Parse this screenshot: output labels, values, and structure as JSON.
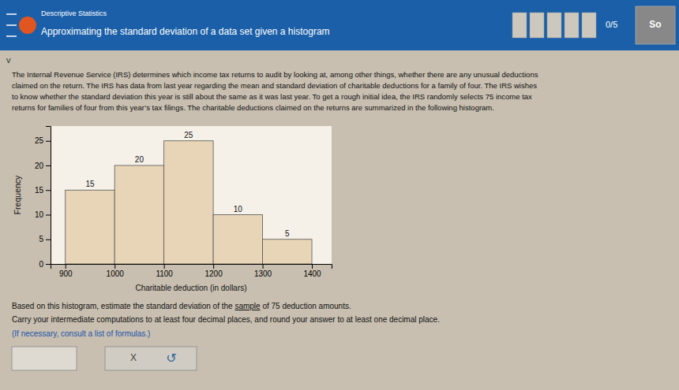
{
  "chart_data": {
    "type": "histogram",
    "bins": [
      900,
      1000,
      1100,
      1200,
      1300,
      1400
    ],
    "values": [
      15,
      20,
      25,
      10,
      5
    ],
    "color": "#e8d5b8",
    "xlim": [
      870,
      1440
    ],
    "xticks": [
      900,
      1000,
      1100,
      1200,
      1300,
      1400
    ],
    "ylim": [
      0,
      28
    ],
    "yticks": [
      0,
      5,
      10,
      15,
      20,
      25
    ],
    "xlabel": "Charitable deduction (in dollars)",
    "ylabel": "Frequency",
    "data_labels": true
  },
  "page": {
    "title": "Approximating the standard deviation of a data set given a histogram",
    "subtitle": "Descriptive Statistics",
    "title_bar_color": "#1a5fa8",
    "title_text_color": "#ffffff",
    "background": "#c8bfb0",
    "plot_background": "#f5f0e8",
    "link_color": "#2255aa",
    "menu_chevron": "v",
    "paragraph": [
      "The Internal Revenue Service (IRS) determines which income tax returns to audit by looking at, among other things, whether there are any unusual deductions",
      "claimed on the return. The IRS has data from last year regarding the mean and standard deviation of charitable deductions for a family of four. The IRS wishes",
      "to know whether the standard deviation this year is still about the same as it was last year. To get a rough initial idea, the IRS randomly selects 75 income tax",
      "returns for families of four from this year’s tax filings. The charitable deductions claimed on the returns are summarized in the following histogram."
    ],
    "question_parts": [
      "Based on this histogram, estimate the standard deviation of the ",
      "sample",
      " of 75 deduction amounts."
    ],
    "instruction": "Carry your intermediate computations to at least four decimal places, and round your answer to at least one decimal place.",
    "formula_note": "(If necessary, consult a list of formulas.)",
    "score": "0/5",
    "button": "So",
    "close_button": "X",
    "refresh_button": "↺"
  }
}
